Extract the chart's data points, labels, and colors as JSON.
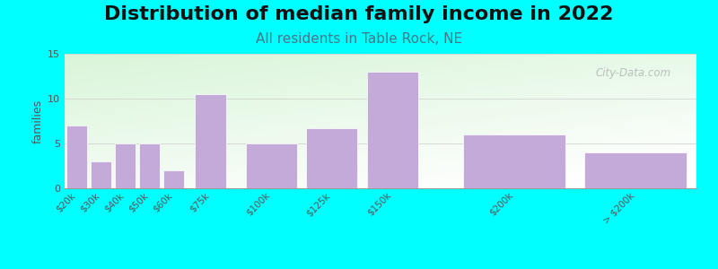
{
  "title": "Distribution of median family income in 2022",
  "subtitle": "All residents in Table Rock, NE",
  "ylabel": "families",
  "background_color": "#00FFFF",
  "plot_bg_color_top": "#d4edda",
  "plot_bg_color_bottom": "#f0f8ef",
  "bar_color": "#c4aad8",
  "categories": [
    "$20k",
    "$30k",
    "$40k",
    "$50k",
    "$60k",
    "$75k",
    "$100k",
    "$125k",
    "$150k",
    "$200k",
    "> $200k"
  ],
  "x_positions": [
    20,
    30,
    40,
    50,
    60,
    75,
    100,
    125,
    150,
    200,
    250
  ],
  "bar_widths": [
    10,
    10,
    10,
    10,
    10,
    15,
    25,
    25,
    25,
    50,
    50
  ],
  "values": [
    7,
    3,
    5,
    5,
    2,
    10.5,
    5,
    6.7,
    13,
    6,
    4
  ],
  "xlim": [
    15,
    275
  ],
  "ylim": [
    0,
    15
  ],
  "yticks": [
    0,
    5,
    10,
    15
  ],
  "title_fontsize": 16,
  "subtitle_fontsize": 11,
  "subtitle_color": "#447788",
  "ylabel_fontsize": 9,
  "watermark_text": "City-Data.com"
}
